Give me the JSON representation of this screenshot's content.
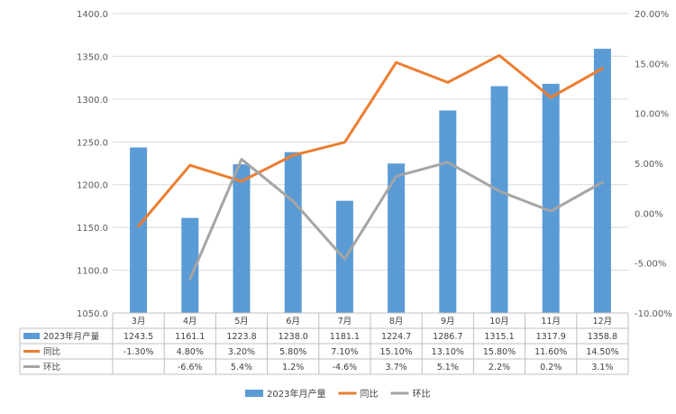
{
  "chart_data": {
    "type": "bar+line",
    "categories": [
      "3月",
      "4月",
      "5月",
      "6月",
      "7月",
      "8月",
      "9月",
      "10月",
      "11月",
      "12月"
    ],
    "series": [
      {
        "name": "2023年月产量",
        "type": "bar",
        "axis": "left",
        "color": "#5B9BD5",
        "values": [
          1243.5,
          1161.1,
          1223.8,
          1238.0,
          1181.1,
          1224.7,
          1286.7,
          1315.1,
          1317.9,
          1358.8
        ],
        "labels": [
          "1243.5",
          "1161.1",
          "1223.8",
          "1238.0",
          "1181.1",
          "1224.7",
          "1286.7",
          "1315.1",
          "1317.9",
          "1358.8"
        ]
      },
      {
        "name": "同比",
        "type": "line",
        "axis": "right",
        "color": "#ED7D31",
        "values": [
          -1.3,
          4.8,
          3.2,
          5.8,
          7.1,
          15.1,
          13.1,
          15.8,
          11.6,
          14.5
        ],
        "labels": [
          "-1.30%",
          "4.80%",
          "3.20%",
          "5.80%",
          "7.10%",
          "15.10%",
          "13.10%",
          "15.80%",
          "11.60%",
          "14.50%"
        ]
      },
      {
        "name": "环比",
        "type": "line",
        "axis": "right",
        "color": "#A5A5A5",
        "values": [
          null,
          -6.6,
          5.4,
          1.2,
          -4.6,
          3.7,
          5.1,
          2.2,
          0.2,
          3.1
        ],
        "labels": [
          "",
          "-6.6%",
          "5.4%",
          "1.2%",
          "-4.6%",
          "3.7%",
          "5.1%",
          "2.2%",
          "0.2%",
          "3.1%"
        ]
      }
    ],
    "y_left": {
      "min": 1050,
      "max": 1400,
      "step": 50,
      "ticks": [
        "1050.0",
        "1100.0",
        "1150.0",
        "1200.0",
        "1250.0",
        "1300.0",
        "1350.0",
        "1400.0"
      ]
    },
    "y_right": {
      "min": -10,
      "max": 20,
      "step": 5,
      "ticks": [
        "-10.00%",
        "-5.00%",
        "0.00%",
        "5.00%",
        "10.00%",
        "15.00%",
        "20.00%"
      ]
    },
    "grid": true,
    "legend": "bottom"
  }
}
